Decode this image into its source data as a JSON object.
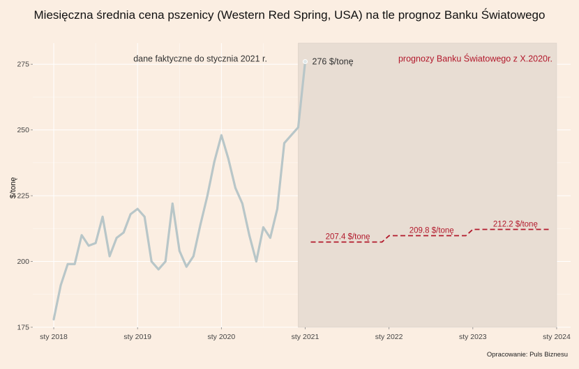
{
  "title": "Miesięczna średnia cena pszenicy (Western Red Spring, USA) na tle prognoz Banku Światowego",
  "caption": "Opracowanie: Puls Biznesu",
  "chart_data": {
    "type": "line",
    "title": "Miesięczna średnia cena pszenicy (Western Red Spring, USA) na tle prognoz Banku Światowego",
    "xlabel": "",
    "ylabel": "$/tonę",
    "ylim": [
      175,
      283
    ],
    "xlim": [
      "2017-10",
      "2024-03"
    ],
    "y_ticks": [
      175,
      200,
      225,
      250,
      275
    ],
    "x_ticks": [
      {
        "date": "2018-01",
        "label": "sty 2018"
      },
      {
        "date": "2019-01",
        "label": "sty 2019"
      },
      {
        "date": "2020-01",
        "label": "sty 2020"
      },
      {
        "date": "2021-01",
        "label": "sty 2021"
      },
      {
        "date": "2022-01",
        "label": "sty 2022"
      },
      {
        "date": "2023-01",
        "label": "sty 2023"
      },
      {
        "date": "2024-01",
        "label": "sty 2024"
      }
    ],
    "grid": true,
    "actual": {
      "color": "#b8c6c8",
      "points": [
        [
          "2018-01",
          178
        ],
        [
          "2018-02",
          191
        ],
        [
          "2018-03",
          199
        ],
        [
          "2018-04",
          199
        ],
        [
          "2018-05",
          210
        ],
        [
          "2018-06",
          206
        ],
        [
          "2018-07",
          207
        ],
        [
          "2018-08",
          217
        ],
        [
          "2018-09",
          202
        ],
        [
          "2018-10",
          209
        ],
        [
          "2018-11",
          211
        ],
        [
          "2018-12",
          218
        ],
        [
          "2019-01",
          220
        ],
        [
          "2019-02",
          217
        ],
        [
          "2019-03",
          200
        ],
        [
          "2019-04",
          197
        ],
        [
          "2019-05",
          200
        ],
        [
          "2019-06",
          222
        ],
        [
          "2019-07",
          204
        ],
        [
          "2019-08",
          198
        ],
        [
          "2019-09",
          202
        ],
        [
          "2019-10",
          214
        ],
        [
          "2019-11",
          225
        ],
        [
          "2019-12",
          238
        ],
        [
          "2020-01",
          248
        ],
        [
          "2020-02",
          239
        ],
        [
          "2020-03",
          228
        ],
        [
          "2020-04",
          222
        ],
        [
          "2020-05",
          210
        ],
        [
          "2020-06",
          200
        ],
        [
          "2020-07",
          213
        ],
        [
          "2020-08",
          209
        ],
        [
          "2020-09",
          220
        ],
        [
          "2020-10",
          245
        ],
        [
          "2020-11",
          248
        ],
        [
          "2020-12",
          251
        ],
        [
          "2021-01",
          276
        ]
      ],
      "end_label": "276 $/tonę"
    },
    "forecast_region": {
      "start": "2020-12",
      "end": "2024-01",
      "color": "#e8ddd3"
    },
    "forecast": {
      "color": "#b2182b",
      "segments": [
        {
          "from": "2021-01",
          "to": "2021-12",
          "value": 207.4,
          "label": "207.4 $/tonę"
        },
        {
          "from": "2022-01",
          "to": "2022-12",
          "value": 209.8,
          "label": "209.8 $/tonę"
        },
        {
          "from": "2023-01",
          "to": "2023-12",
          "value": 212.2,
          "label": "212.2 $/tonę"
        }
      ]
    },
    "annotations": {
      "actual_note": "dane faktyczne do stycznia 2021 r.",
      "forecast_note": "prognozy Banku Światowego z X.2020r."
    }
  }
}
